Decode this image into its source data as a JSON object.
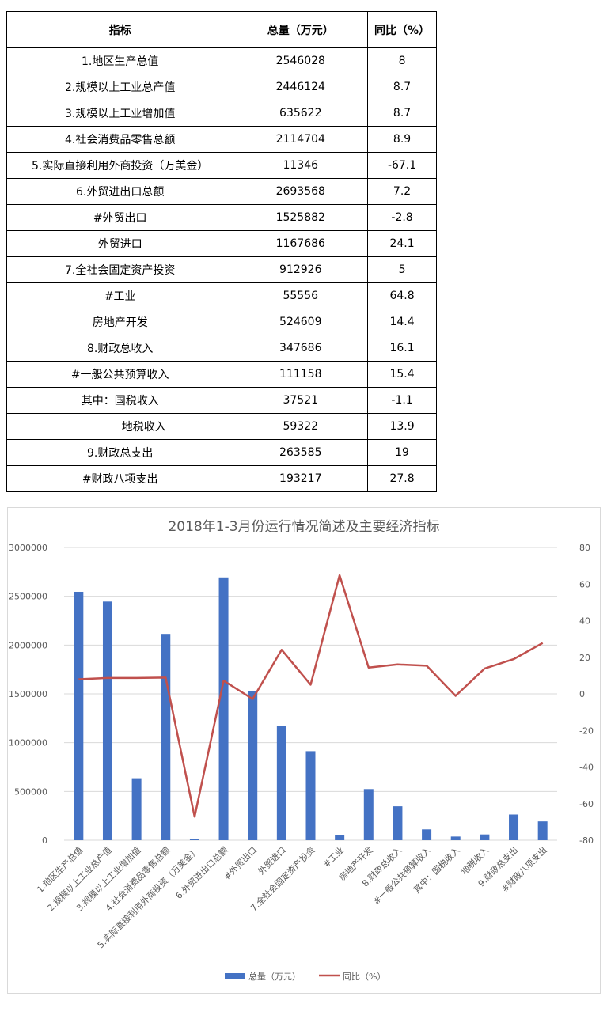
{
  "table": {
    "headers": [
      "指标",
      "总量（万元）",
      "同比（%）"
    ],
    "rows": [
      {
        "label": "1.地区生产总值",
        "total": "2546028",
        "yoy": "8",
        "indent": 0
      },
      {
        "label": "2.规模以上工业总产值",
        "total": "2446124",
        "yoy": "8.7",
        "indent": 0
      },
      {
        "label": "3.规模以上工业增加值",
        "total": "635622",
        "yoy": "8.7",
        "indent": 0
      },
      {
        "label": "4.社会消费品零售总额",
        "total": "2114704",
        "yoy": "8.9",
        "indent": 0
      },
      {
        "label": "5.实际直接利用外商投资（万美金）",
        "total": "11346",
        "yoy": "-67.1",
        "indent": 0
      },
      {
        "label": "6.外贸进出口总额",
        "total": "2693568",
        "yoy": "7.2",
        "indent": 0
      },
      {
        "label": "#外贸出口",
        "total": "1525882",
        "yoy": "-2.8",
        "indent": 0
      },
      {
        "label": "外贸进口",
        "total": "1167686",
        "yoy": "24.1",
        "indent": 0
      },
      {
        "label": "7.全社会固定资产投资",
        "total": "912926",
        "yoy": "5",
        "indent": 0
      },
      {
        "label": "#工业",
        "total": "55556",
        "yoy": "64.8",
        "indent": 0
      },
      {
        "label": "房地产开发",
        "total": "524609",
        "yoy": "14.4",
        "indent": 0
      },
      {
        "label": "8.财政总收入",
        "total": "347686",
        "yoy": "16.1",
        "indent": 0
      },
      {
        "label": "#一般公共预算收入",
        "total": "111158",
        "yoy": "15.4",
        "indent": 0
      },
      {
        "label": "其中：国税收入",
        "total": "37521",
        "yoy": "-1.1",
        "indent": 0
      },
      {
        "label": "地税收入",
        "total": "59322",
        "yoy": "13.9",
        "indent": 1
      },
      {
        "label": "9.财政总支出",
        "total": "263585",
        "yoy": "19",
        "indent": 0
      },
      {
        "label": "#财政八项支出",
        "total": "193217",
        "yoy": "27.8",
        "indent": 0
      }
    ]
  },
  "chart_data": {
    "type": "bar",
    "title": "2018年1-3月份运行情况简述及主要经济指标",
    "categories": [
      "1.地区生产总值",
      "2.规模以上工业总产值",
      "3.规模以上工业增加值",
      "4.社会消费品零售总额",
      "5.实际直接利用外商投资（万美金）",
      "6.外贸进出口总额",
      "#外贸出口",
      "外贸进口",
      "7.全社会固定资产投资",
      "#工业",
      "房地产开发",
      "8.财政总收入",
      "#一般公共预算收入",
      "其中：国税收入",
      "地税收入",
      "9.财政总支出",
      "#财政八项支出"
    ],
    "series": [
      {
        "name": "总量（万元）",
        "type": "bar",
        "axis": "left",
        "color": "#4472c4",
        "values": [
          2546028,
          2446124,
          635622,
          2114704,
          11346,
          2693568,
          1525882,
          1167686,
          912926,
          55556,
          524609,
          347686,
          111158,
          37521,
          59322,
          263585,
          193217
        ]
      },
      {
        "name": "同比（%）",
        "type": "line",
        "axis": "right",
        "color": "#c0504d",
        "values": [
          8,
          8.7,
          8.7,
          8.9,
          -67.1,
          7.2,
          -2.8,
          24.1,
          5,
          64.8,
          14.4,
          16.1,
          15.4,
          -1.1,
          13.9,
          19,
          27.8
        ]
      }
    ],
    "y_left": {
      "min": 0,
      "max": 3000000,
      "ticks": [
        "0",
        "500000",
        "1000000",
        "1500000",
        "2000000",
        "2500000",
        "3000000"
      ]
    },
    "y_right": {
      "min": -80,
      "max": 80,
      "ticks": [
        "-80",
        "-60",
        "-40",
        "-20",
        "0",
        "20",
        "40",
        "60",
        "80"
      ]
    },
    "grid": true,
    "legend_position": "bottom"
  }
}
